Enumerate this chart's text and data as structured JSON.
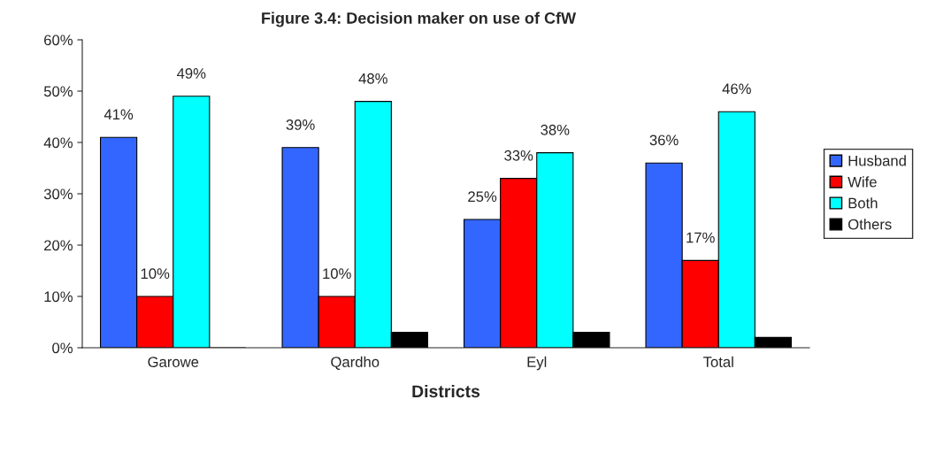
{
  "chart_data": {
    "type": "bar",
    "title": "Figure 3.4: Decision maker on use of CfW",
    "xlabel": "Districts",
    "categories": [
      "Garowe",
      "Qardho",
      "Eyl",
      "Total"
    ],
    "series": [
      {
        "name": "Husband",
        "color": "#3366ff",
        "values": [
          41,
          39,
          25,
          36
        ],
        "value_labels": [
          "41%",
          "39%",
          "25%",
          "36%"
        ]
      },
      {
        "name": "Wife",
        "color": "#ff0000",
        "values": [
          10,
          10,
          33,
          17
        ],
        "value_labels": [
          "10%",
          "10%",
          "33%",
          "17%"
        ]
      },
      {
        "name": "Both",
        "color": "#00ffff",
        "values": [
          49,
          48,
          38,
          46
        ],
        "value_labels": [
          "49%",
          "48%",
          "38%",
          "46%"
        ]
      },
      {
        "name": "Others",
        "color": "#000000",
        "values": [
          0,
          3,
          3,
          2
        ],
        "value_labels": [
          null,
          null,
          null,
          null
        ]
      }
    ],
    "ylim": [
      0,
      60
    ],
    "yticks": [
      {
        "value": 0,
        "label": "0%"
      },
      {
        "value": 10,
        "label": "10%"
      },
      {
        "value": 20,
        "label": "20%"
      },
      {
        "value": 30,
        "label": "30%"
      },
      {
        "value": 40,
        "label": "40%"
      },
      {
        "value": 50,
        "label": "50%"
      },
      {
        "value": 60,
        "label": "60%"
      }
    ],
    "grid": false,
    "legend": "right"
  }
}
